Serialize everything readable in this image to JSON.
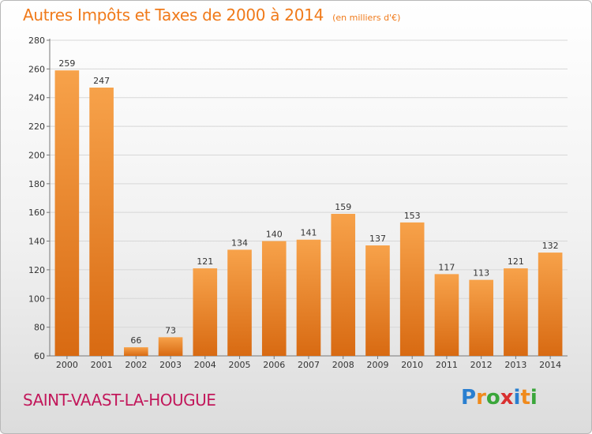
{
  "header": {
    "title": "Autres Impôts et Taxes de 2000 à 2014",
    "subtitle": "(en milliers d'€)"
  },
  "footer": {
    "commune": "SAINT-VAAST-LA-HOUGUE",
    "brand_letters": [
      "P",
      "r",
      "o",
      "x",
      "i",
      "t",
      "i"
    ]
  },
  "colors": {
    "bar_light": "#f7a24a",
    "bar_dark": "#d86a12",
    "title": "#f07a1a",
    "commune": "#c2185b",
    "grid": "#d7d7d7"
  },
  "chart_data": {
    "type": "bar",
    "title": "Autres Impôts et Taxes de 2000 à 2014",
    "subtitle": "(en milliers d'€)",
    "categories": [
      "2000",
      "2001",
      "2002",
      "2003",
      "2004",
      "2005",
      "2006",
      "2007",
      "2008",
      "2009",
      "2010",
      "2011",
      "2012",
      "2013",
      "2014"
    ],
    "values": [
      259,
      247,
      66,
      73,
      121,
      134,
      140,
      141,
      159,
      137,
      153,
      117,
      113,
      121,
      132
    ],
    "ylim": [
      60,
      280
    ],
    "yticks": [
      60,
      80,
      100,
      120,
      140,
      160,
      180,
      200,
      220,
      240,
      260,
      280
    ],
    "grid": true,
    "data_labels": true
  }
}
